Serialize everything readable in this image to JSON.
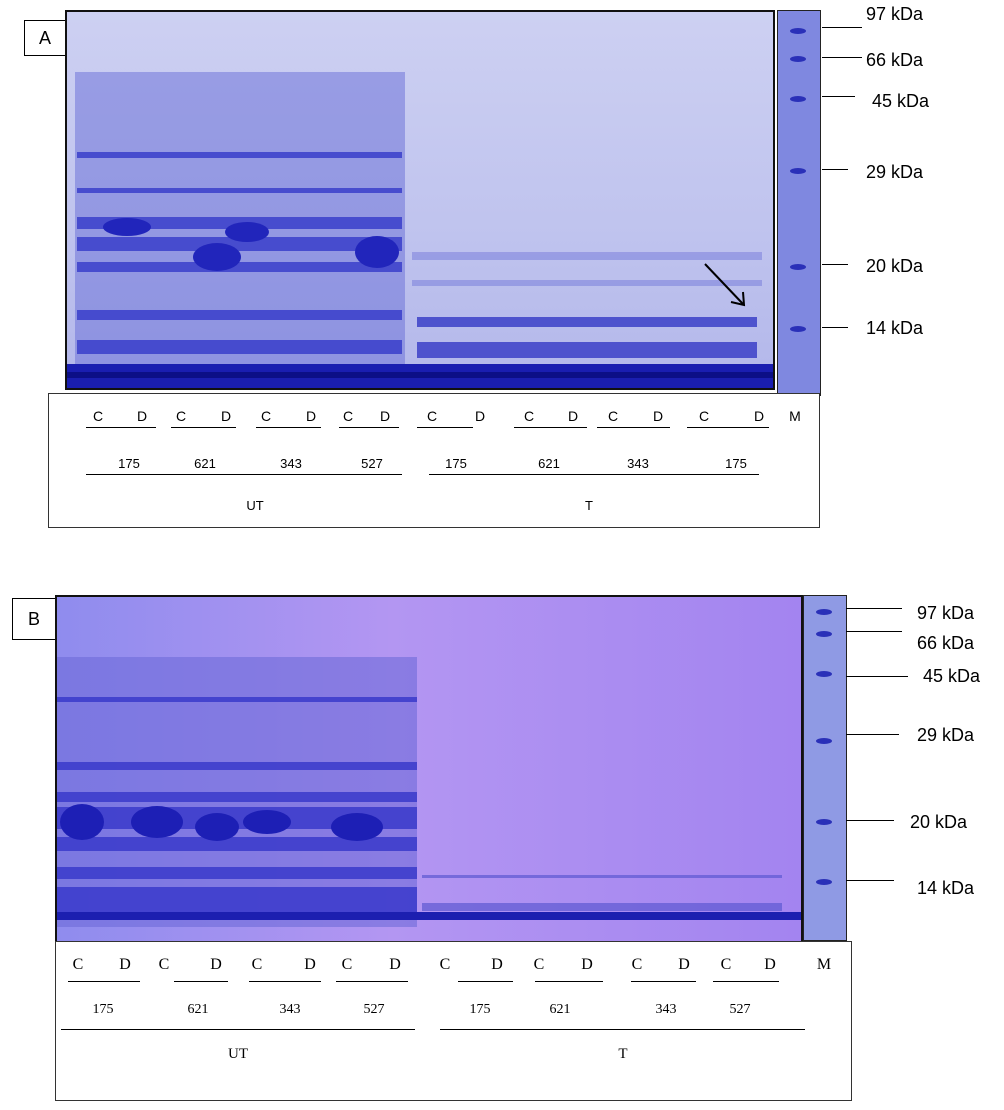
{
  "panel_a": {
    "label": "A",
    "markers": [
      "97 kDa",
      "66 kDa",
      "45 kDa",
      "29 kDa",
      "20 kDa",
      "14 kDa"
    ],
    "lane_letters": [
      "C",
      "D",
      "C",
      "D",
      "C",
      "D",
      "C",
      "D",
      "C",
      "D",
      "C",
      "D",
      "C",
      "D",
      "C",
      "D"
    ],
    "ladder_label": "M",
    "strains": [
      "175",
      "621",
      "343",
      "527",
      "175",
      "621",
      "343",
      "175"
    ],
    "groups": [
      "UT",
      "T"
    ]
  },
  "panel_b": {
    "label": "B",
    "markers": [
      "97 kDa",
      "66 kDa",
      "45 kDa",
      "29 kDa",
      "20 kDa",
      "14 kDa"
    ],
    "lane_letters": [
      "C",
      "D",
      "C",
      "D",
      "C",
      "D",
      "C",
      "D",
      "C",
      "D",
      "C",
      "D",
      "C",
      "D",
      "C",
      "D"
    ],
    "ladder_label": "M",
    "strains": [
      "175",
      "621",
      "343",
      "527",
      "175",
      "621",
      "343",
      "527"
    ],
    "groups": [
      "UT",
      "T"
    ]
  },
  "colors": {
    "gel_a_bg": "#c2c6ee",
    "gel_b_bg": "#a98ef0",
    "band_blue": "#2b2fc4",
    "ladder_a_bg": "#7f88e0",
    "ladder_b_bg": "#8f9ae4"
  }
}
